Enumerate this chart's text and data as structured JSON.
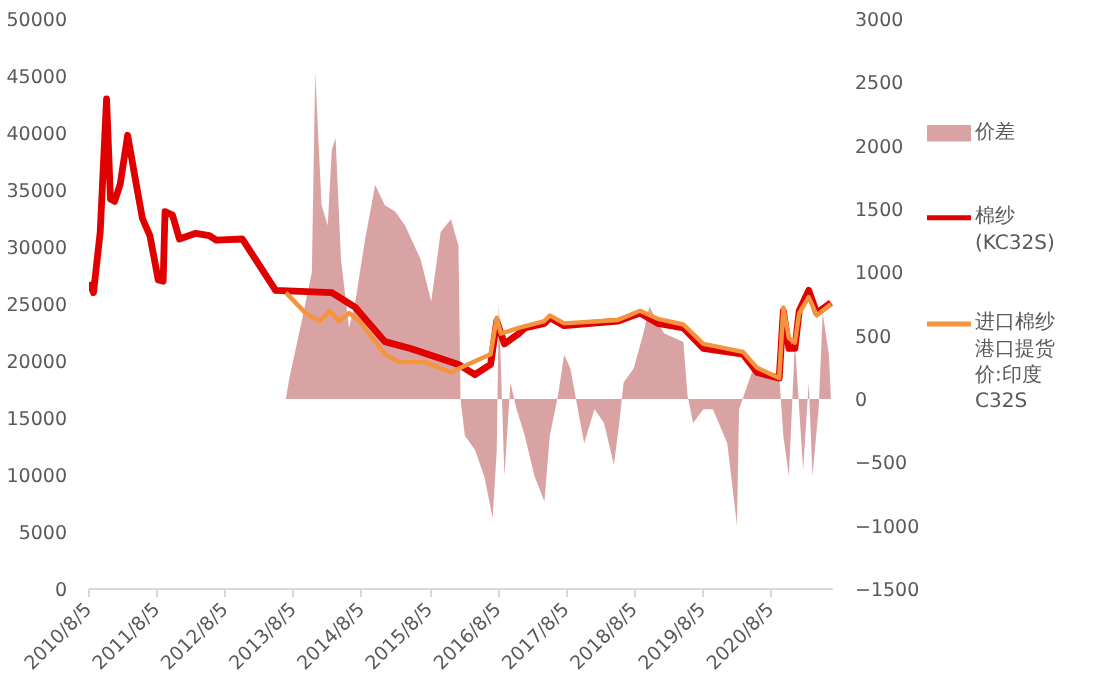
{
  "chart_data": {
    "type": "line",
    "xlim": [
      "2010-08-05",
      "2021-07-01"
    ],
    "xticks": [
      {
        "value": "2010-08-05",
        "label": "2010/8/5"
      },
      {
        "value": "2011-08-05",
        "label": "2011/8/5"
      },
      {
        "value": "2012-08-05",
        "label": "2012/8/5"
      },
      {
        "value": "2013-08-05",
        "label": "2013/8/5"
      },
      {
        "value": "2014-08-05",
        "label": "2014/8/5"
      },
      {
        "value": "2015-08-05",
        "label": "2015/8/5"
      },
      {
        "value": "2016-08-05",
        "label": "2016/8/5"
      },
      {
        "value": "2017-08-05",
        "label": "2017/8/5"
      },
      {
        "value": "2018-08-05",
        "label": "2018/8/5"
      },
      {
        "value": "2019-08-05",
        "label": "2019/8/5"
      },
      {
        "value": "2020-08-05",
        "label": "2020/8/5"
      }
    ],
    "ylim": [
      0,
      50000
    ],
    "yticks": [
      0,
      5000,
      10000,
      15000,
      20000,
      25000,
      30000,
      35000,
      40000,
      45000,
      50000
    ],
    "y2lim": [
      -1500,
      3000
    ],
    "y2ticks": [
      -1500,
      -1000,
      -500,
      0,
      500,
      1000,
      1500,
      2000,
      2500,
      3000
    ],
    "grid": false,
    "legend": "right",
    "series": [
      {
        "name": "价差",
        "type": "area",
        "axis": "y2",
        "color": "#d9a3a3",
        "x": [
          "2013-06-24",
          "2013-07-12",
          "2013-09-16",
          "2013-11-10",
          "2013-11-28",
          "2014-01-01",
          "2014-02-03",
          "2014-02-25",
          "2014-03-17",
          "2014-04-15",
          "2014-05-28",
          "2014-07-01",
          "2014-08-22",
          "2014-10-15",
          "2014-12-06",
          "2015-01-30",
          "2015-03-24",
          "2015-06-16",
          "2015-08-11",
          "2015-10-01",
          "2015-11-25",
          "2016-01-04",
          "2016-01-15",
          "2016-02-07",
          "2016-04-01",
          "2016-05-21",
          "2016-07-05",
          "2016-07-27",
          "2016-08-07",
          "2016-09-06",
          "2016-10-08",
          "2016-11-10",
          "2016-12-24",
          "2017-02-14",
          "2017-04-08",
          "2017-05-07",
          "2017-06-20",
          "2017-07-23",
          "2017-08-25",
          "2017-10-04",
          "2017-11-07",
          "2018-01-01",
          "2018-02-21",
          "2018-04-15",
          "2018-05-14",
          "2018-06-06",
          "2018-07-30",
          "2018-09-20",
          "2018-10-22",
          "2019-01-08",
          "2019-04-22",
          "2019-05-14",
          "2019-06-13",
          "2019-08-07",
          "2019-09-27",
          "2019-12-13",
          "2020-02-03",
          "2020-02-14",
          "2020-04-30",
          "2020-09-16",
          "2020-10-08",
          "2020-11-07",
          "2020-12-09",
          "2021-01-22",
          "2021-02-21",
          "2021-03-13",
          "2021-04-15",
          "2021-05-07",
          "2021-06-09",
          "2021-06-20"
        ],
        "values": [
          0,
          160,
          610,
          1000,
          2580,
          1530,
          1370,
          1970,
          2060,
          1100,
          560,
          770,
          1260,
          1690,
          1530,
          1480,
          1370,
          1100,
          770,
          1320,
          1420,
          1210,
          0,
          -290,
          -400,
          -610,
          -940,
          -400,
          770,
          -610,
          130,
          -80,
          -290,
          -610,
          -810,
          -290,
          30,
          350,
          240,
          -80,
          -350,
          -80,
          -190,
          -520,
          -190,
          130,
          240,
          520,
          730,
          520,
          450,
          30,
          -190,
          -80,
          -80,
          -350,
          -1000,
          -80,
          240,
          190,
          -290,
          -610,
          450,
          -560,
          130,
          -610,
          -80,
          680,
          350,
          0
        ]
      },
      {
        "name": "棉纱(KC32S)",
        "color": "#e00000",
        "x": [
          "2010-08-05",
          "2010-08-29",
          "2010-10-04",
          "2010-11-07",
          "2010-11-28",
          "2010-12-20",
          "2011-01-19",
          "2011-02-28",
          "2011-04-15",
          "2011-05-18",
          "2011-06-27",
          "2011-08-11",
          "2011-09-06",
          "2011-09-16",
          "2011-10-26",
          "2011-12-02",
          "2012-02-28",
          "2012-05-10",
          "2012-06-16",
          "2012-11-03",
          "2013-04-30",
          "2014-02-25",
          "2014-07-01",
          "2014-12-06",
          "2015-04-22",
          "2016-01-04",
          "2016-04-01",
          "2016-06-24",
          "2016-07-27",
          "2016-09-06",
          "2016-11-21",
          "2016-12-24",
          "2017-04-08",
          "2017-05-07",
          "2017-07-23",
          "2018-05-07",
          "2018-09-02",
          "2018-12-06",
          "2019-04-22",
          "2019-08-07",
          "2020-03-06",
          "2020-05-21",
          "2020-09-16",
          "2020-10-08",
          "2020-11-07",
          "2020-12-09",
          "2021-01-01",
          "2021-02-21",
          "2021-04-05",
          "2021-06-20"
        ],
        "values": [
          26900,
          26000,
          31300,
          43000,
          34200,
          34000,
          35500,
          39800,
          35500,
          32500,
          31000,
          27100,
          27000,
          33100,
          32800,
          30700,
          31200,
          31000,
          30600,
          30700,
          26200,
          26000,
          24700,
          21700,
          21100,
          19700,
          18800,
          19700,
          23500,
          21500,
          22400,
          22900,
          23300,
          23800,
          23100,
          23500,
          24200,
          23300,
          22900,
          21100,
          20600,
          19000,
          18500,
          24400,
          21100,
          21100,
          24400,
          26200,
          24200,
          25100
        ]
      },
      {
        "name": "进口棉纱港口提货价:印度C32S",
        "color": "#f4943c",
        "x": [
          "2013-06-24",
          "2013-10-08",
          "2013-12-20",
          "2014-02-14",
          "2014-04-05",
          "2014-05-28",
          "2014-07-23",
          "2014-12-06",
          "2015-02-21",
          "2015-07-08",
          "2015-11-25",
          "2016-01-15",
          "2016-06-24",
          "2016-07-27",
          "2016-08-18",
          "2016-11-21",
          "2017-04-08",
          "2017-05-07",
          "2017-07-23",
          "2018-05-07",
          "2018-09-02",
          "2018-12-06",
          "2019-04-22",
          "2019-08-07",
          "2020-03-06",
          "2020-05-21",
          "2020-09-16",
          "2020-10-08",
          "2020-11-07",
          "2020-12-09",
          "2021-01-01",
          "2021-02-21",
          "2021-04-05",
          "2021-06-20"
        ],
        "values": [
          26000,
          24200,
          23500,
          24400,
          23500,
          24200,
          23500,
          20600,
          19900,
          19900,
          19000,
          19400,
          20600,
          23800,
          22400,
          22900,
          23500,
          24000,
          23300,
          23600,
          24400,
          23700,
          23200,
          21500,
          20800,
          19400,
          18500,
          24700,
          22000,
          21600,
          24200,
          25600,
          24000,
          25000
        ]
      }
    ]
  }
}
